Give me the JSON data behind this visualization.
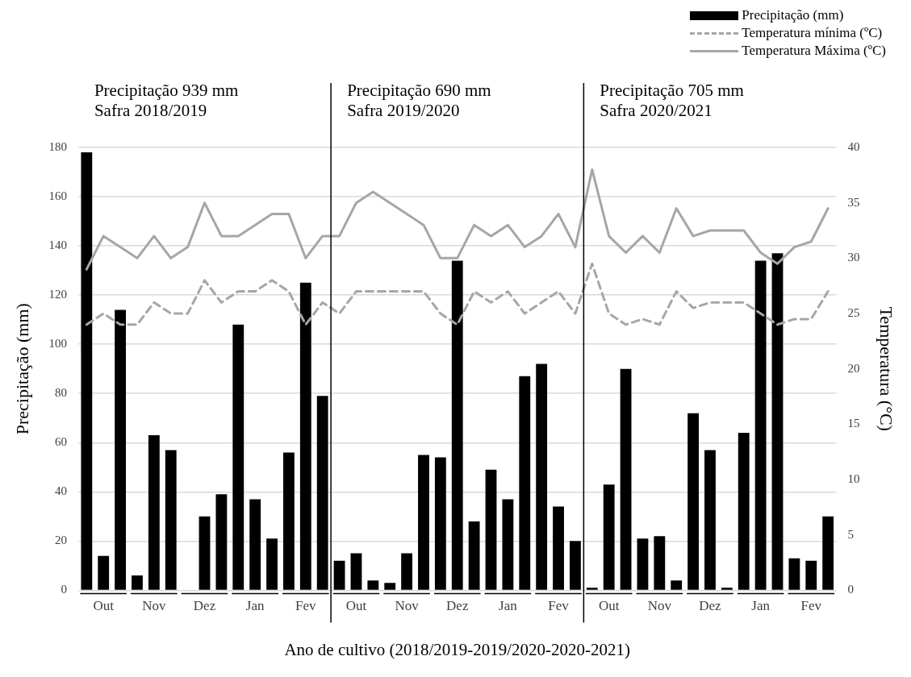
{
  "chart_data": {
    "type": "bar",
    "xlabel": "Ano de cultivo (2018/2019-2019/2020-2020-2021)",
    "ylabel": "Precipitação (mm)",
    "y2label": "Temperatura (°C)",
    "annotations": [
      "Precipitação 939 mm\nSafra 2018/2019",
      "Precipitação 690 mm\nSafra 2019/2020",
      "Precipitação 705 mm\nSafra 2020/2021"
    ],
    "categories": [
      null,
      "Out",
      null,
      null,
      "Nov",
      null,
      null,
      "Dez",
      null,
      null,
      "Jan",
      null,
      null,
      "Fev",
      null,
      null,
      "Out",
      null,
      null,
      "Nov",
      null,
      null,
      "Dez",
      null,
      null,
      "Jan",
      null,
      null,
      "Fev",
      null,
      null,
      "Out",
      null,
      null,
      "Nov",
      null,
      null,
      "Dez",
      null,
      null,
      "Jan",
      null,
      null,
      "Fev",
      null
    ],
    "ylim": [
      0,
      180
    ],
    "yticks": [
      0,
      20,
      40,
      60,
      80,
      100,
      120,
      140,
      160,
      180
    ],
    "y2lim": [
      0,
      40
    ],
    "y2ticks": [
      0,
      5,
      10,
      15,
      20,
      25,
      30,
      35,
      40
    ],
    "grid": "y",
    "legend": "top right",
    "series": [
      {
        "name": "Precipitação (mm)",
        "color": "#000000",
        "values": [
          178,
          14,
          114,
          6,
          63,
          57,
          0,
          30,
          39,
          108,
          37,
          21,
          56,
          125,
          79,
          12,
          15,
          4,
          3,
          15,
          55,
          54,
          134,
          28,
          49,
          37,
          87,
          92,
          34,
          20,
          1,
          43,
          90,
          21,
          22,
          4,
          72,
          57,
          1,
          64,
          134,
          137,
          13,
          12,
          30
        ]
      },
      {
        "type": "line",
        "axis": "y2",
        "name": "Temperatura mínima (ºC)",
        "color": "#a6a6a6",
        "line_style": "dashed",
        "values": [
          24,
          25,
          24,
          24,
          26,
          25,
          25,
          28,
          26,
          27,
          27,
          28,
          27,
          24,
          26,
          25,
          27,
          27,
          27,
          27,
          27,
          25,
          24,
          27,
          26,
          27,
          25,
          26,
          27,
          25,
          29.5,
          25,
          24,
          24.5,
          24,
          27,
          25.5,
          26,
          26,
          26,
          25,
          24,
          24.5,
          24.5,
          27
        ]
      },
      {
        "type": "line",
        "axis": "y2",
        "name": "Temperatura Máxima (ºC)",
        "color": "#a6a6a6",
        "line_style": "solid",
        "values": [
          29,
          32,
          31,
          30,
          32,
          30,
          31,
          35,
          32,
          32,
          33,
          34,
          34,
          30,
          32,
          32,
          35,
          36,
          35,
          34,
          33,
          30,
          30,
          33,
          32,
          33,
          31,
          32,
          34,
          31,
          38,
          32,
          30.5,
          32,
          30.5,
          34.5,
          32,
          32.5,
          32.5,
          32.5,
          30.5,
          29.5,
          31,
          31.5,
          34.5
        ]
      }
    ]
  }
}
